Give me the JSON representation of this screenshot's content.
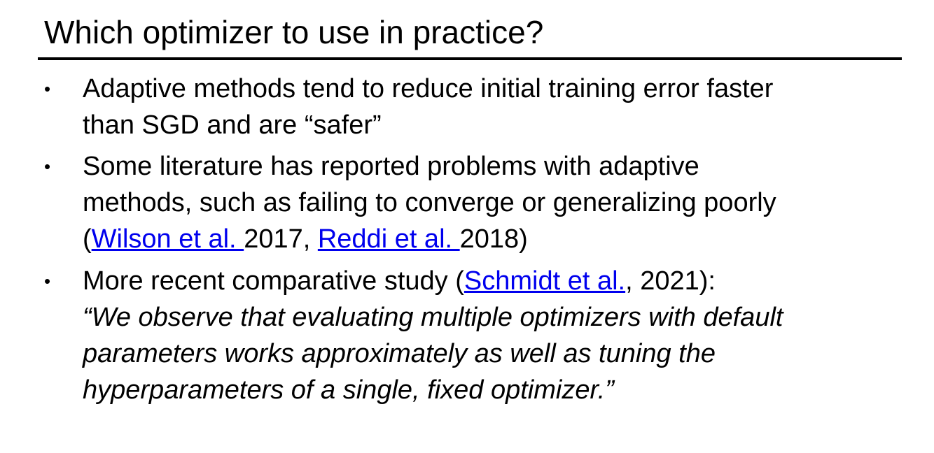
{
  "slide": {
    "title": "Which optimizer to use in practice?"
  },
  "bullets": [
    {
      "lines": [
        "Adaptive methods tend to reduce initial training error faster",
        "than SGD and are “safer”"
      ]
    },
    {
      "lines": [
        "Some literature has reported problems with adaptive",
        "methods, such as failing to converge or generalizing poorly"
      ],
      "citation": {
        "open": "(",
        "link1": "Wilson et al. ",
        "mid": "2017, ",
        "link2": "Reddi et al. ",
        "close": "2018)"
      }
    },
    {
      "lead": {
        "before": "More recent comparative study (",
        "link": "Schmidt et al.",
        "after": ", 2021):"
      },
      "quote_lines": [
        "“We observe that evaluating multiple optimizers with default",
        "parameters works approximately as well as tuning the",
        "hyperparameters of a single, fixed optimizer.”"
      ]
    }
  ],
  "bullet_symbol": "•",
  "colors": {
    "text": "#000000",
    "link": "#0000ee",
    "background": "#ffffff"
  }
}
